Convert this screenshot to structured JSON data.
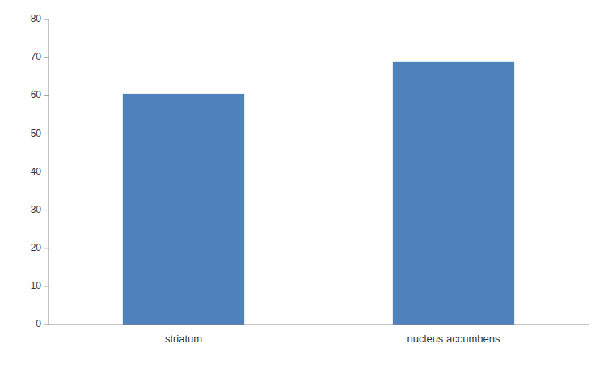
{
  "chart_data": {
    "type": "bar",
    "categories": [
      "striatum",
      "nucleus accumbens"
    ],
    "values": [
      60.5,
      69.0
    ],
    "color": "#4F81BD",
    "ylim": [
      0,
      80
    ],
    "yticks": [
      0,
      10,
      20,
      30,
      40,
      50,
      60,
      70,
      80
    ],
    "grid": false
  }
}
